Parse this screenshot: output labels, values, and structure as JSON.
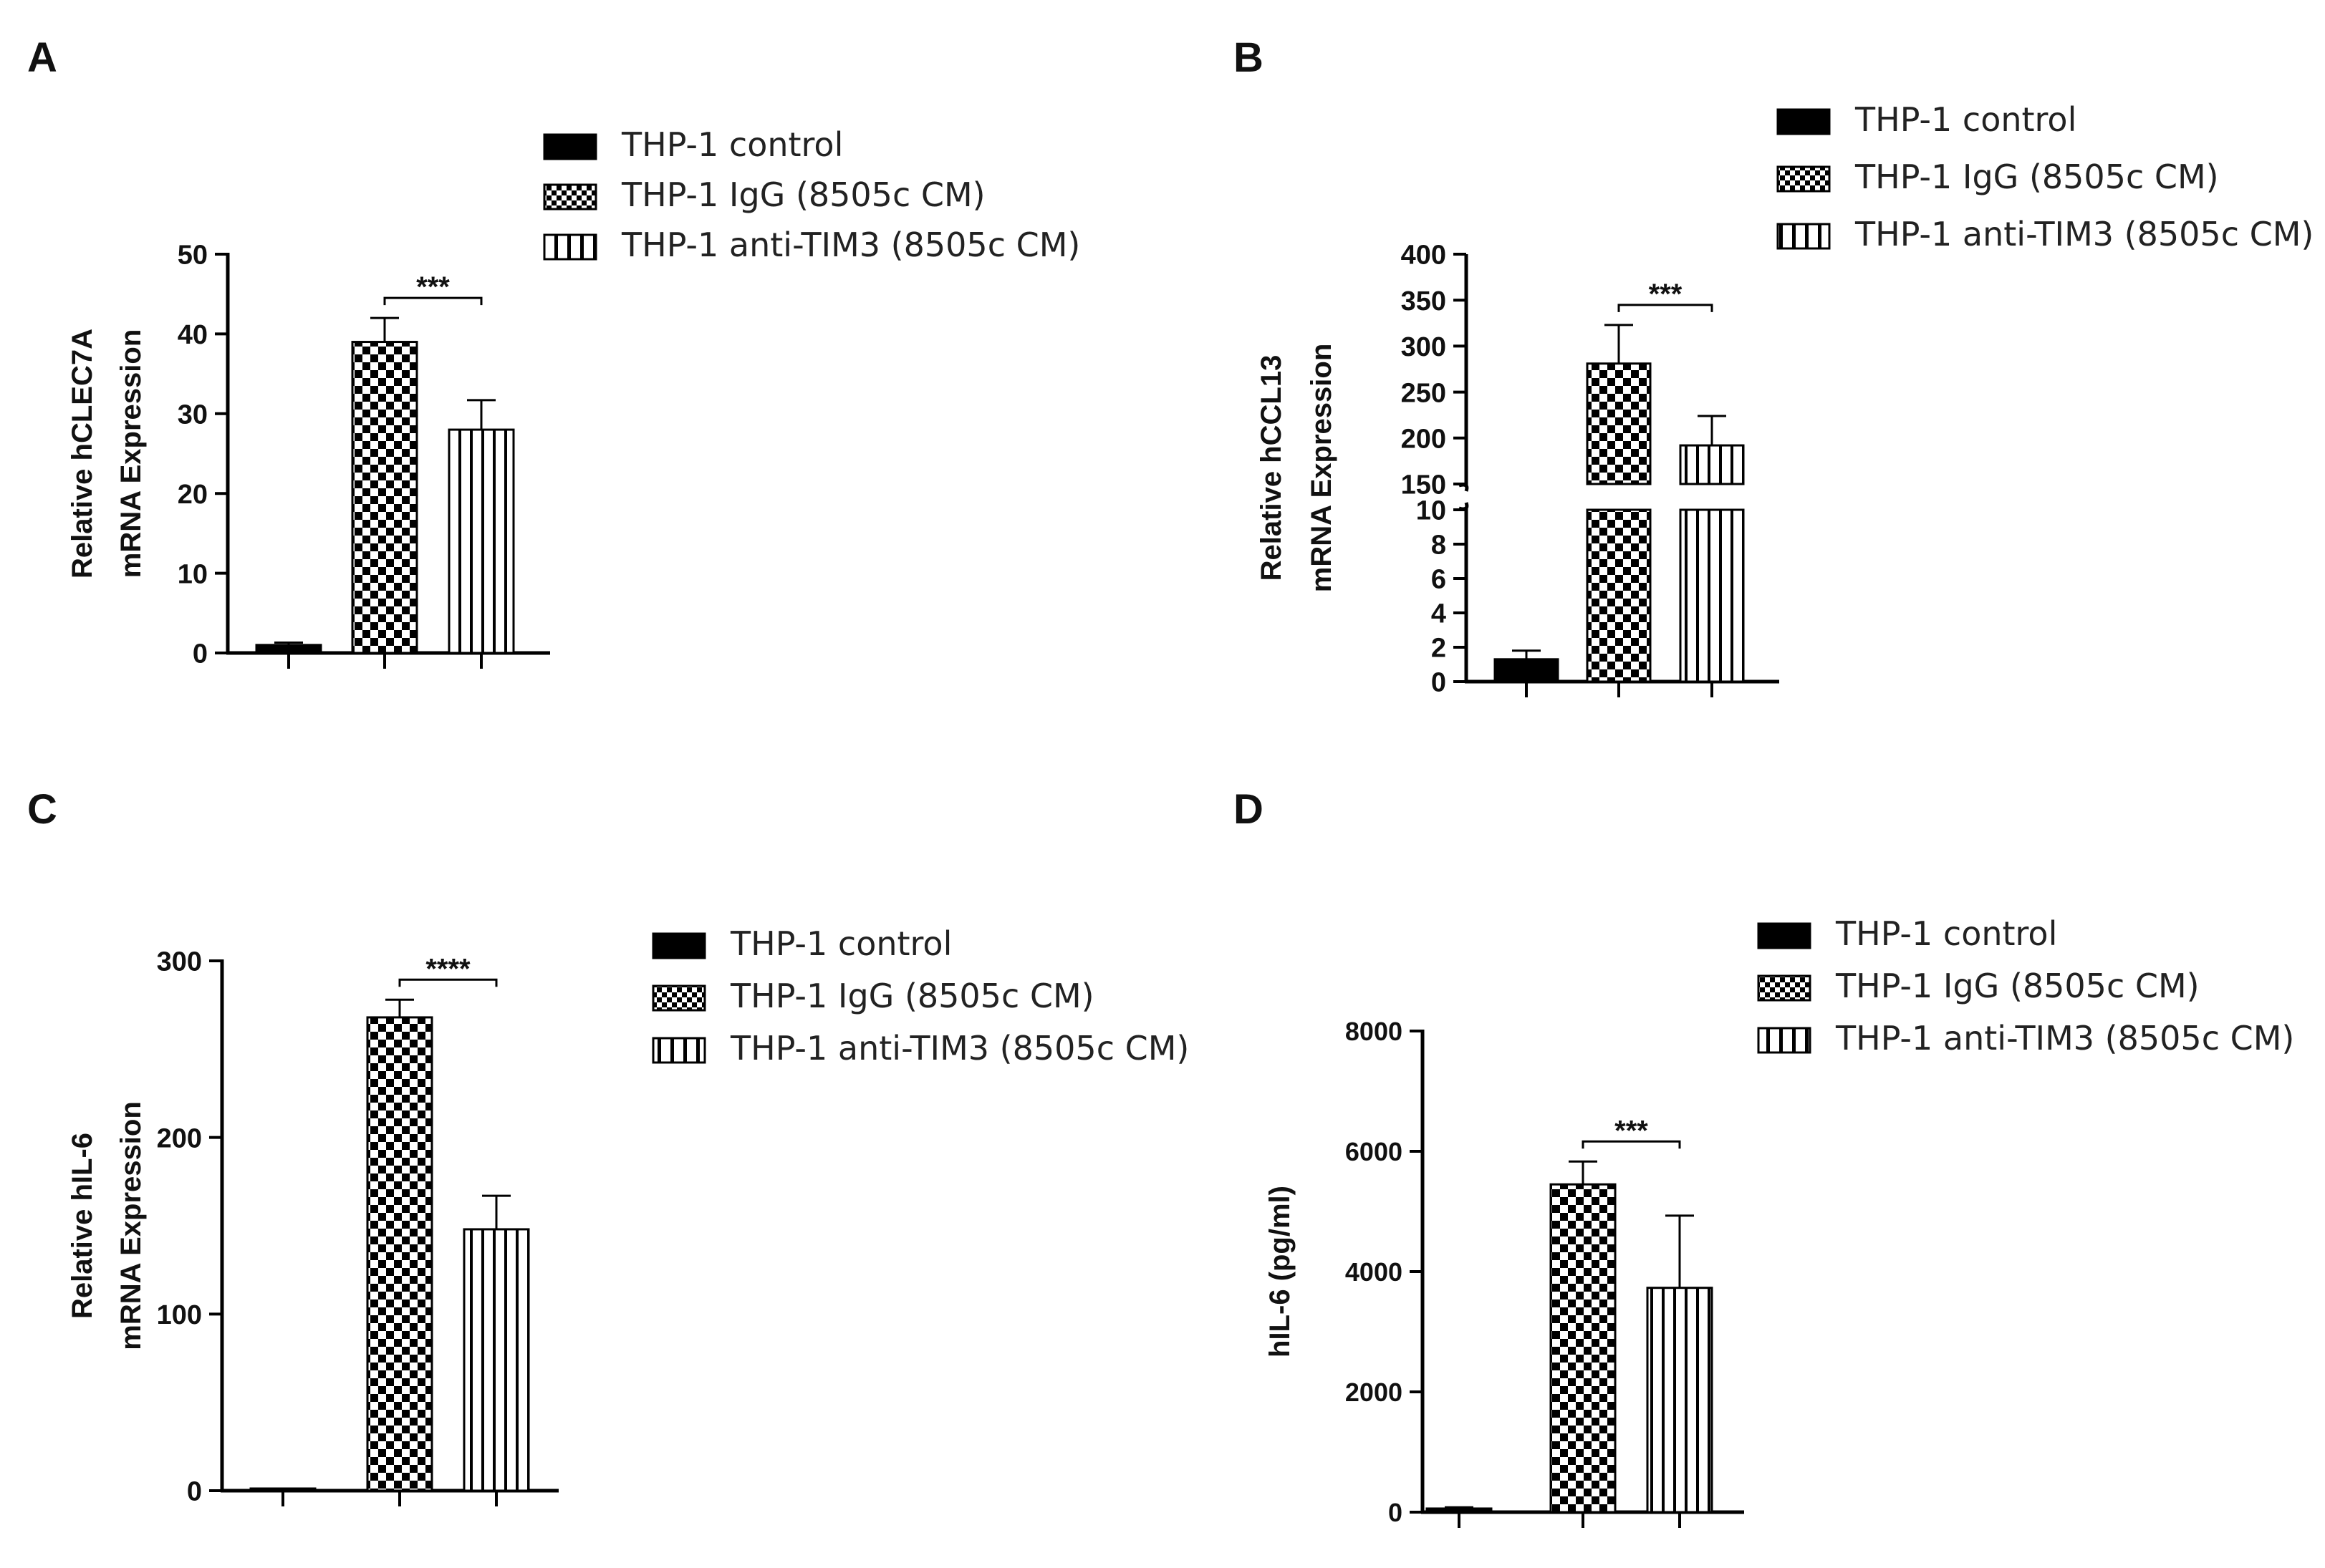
{
  "legend": [
    "THP-1 control",
    "THP-1 IgG (8505c CM)",
    "THP-1 anti-TIM3 (8505c CM)"
  ],
  "chart_data": [
    {
      "panel": "A",
      "type": "bar",
      "categories": [
        "THP-1 control",
        "THP-1 IgG (8505c CM)",
        "THP-1 anti-TIM3 (8505c CM)"
      ],
      "values": [
        1,
        39,
        28
      ],
      "errors": [
        0.3,
        3,
        3.7
      ],
      "ylabel_line1": "Relative hCLEC7A",
      "ylabel_line2": "mRNA Expression",
      "ylim": [
        0,
        50
      ],
      "yticks": [
        "0",
        "10",
        "20",
        "30",
        "40",
        "50"
      ],
      "significance": "***"
    },
    {
      "panel": "B",
      "type": "bar",
      "categories": [
        "THP-1 control",
        "THP-1 IgG (8505c CM)",
        "THP-1 anti-TIM3 (8505c CM)"
      ],
      "values": [
        1.3,
        281,
        192
      ],
      "errors": [
        0.5,
        42,
        32
      ],
      "ylabel_line1": "Relative hCCL13",
      "ylabel_line2": "mRNA Expression",
      "broken_axis": {
        "lower": [
          0,
          10
        ],
        "upper": [
          150,
          400
        ]
      },
      "yticks_lower": [
        "0",
        "2",
        "4",
        "6",
        "8",
        "10"
      ],
      "yticks_upper": [
        "150",
        "200",
        "250",
        "300",
        "350",
        "400"
      ],
      "significance": "***"
    },
    {
      "panel": "C",
      "type": "bar",
      "categories": [
        "THP-1 control",
        "THP-1 IgG (8505c CM)",
        "THP-1 anti-TIM3 (8505c CM)"
      ],
      "values": [
        0.5,
        268,
        148
      ],
      "errors": [
        0,
        10,
        19
      ],
      "ylabel_line1": "Relative hIL-6",
      "ylabel_line2": "mRNA Expression",
      "ylim": [
        0,
        300
      ],
      "yticks": [
        "0",
        "100",
        "200",
        "300"
      ],
      "significance": "****"
    },
    {
      "panel": "D",
      "type": "bar",
      "categories": [
        "THP-1 control",
        "THP-1 IgG (8505c CM)",
        "THP-1 anti-TIM3 (8505c CM)"
      ],
      "values": [
        60,
        5450,
        3730
      ],
      "errors": [
        20,
        380,
        1200
      ],
      "ylabel_line1": "hIL-6 (pg/ml)",
      "ylabel_line2": "",
      "ylim": [
        0,
        8000
      ],
      "yticks": [
        "0",
        "2000",
        "4000",
        "6000",
        "8000"
      ],
      "significance": "***"
    }
  ]
}
